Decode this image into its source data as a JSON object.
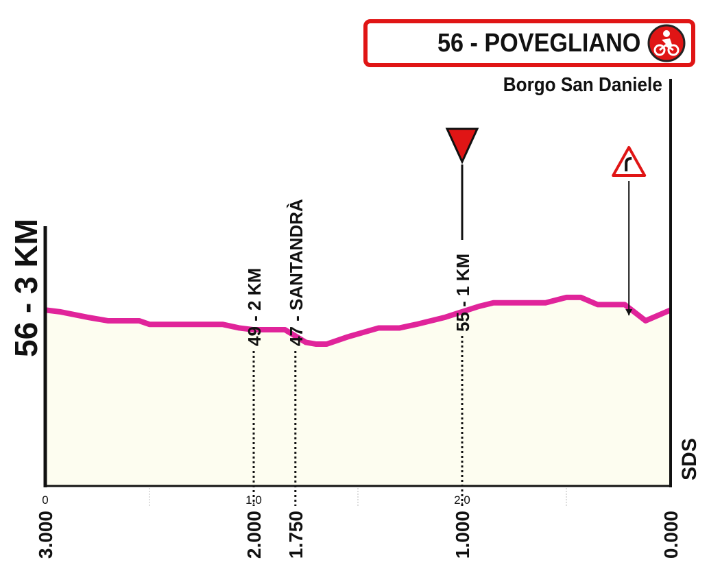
{
  "finish": {
    "title": "56 - POVEGLIANO",
    "subtitle": "Borgo San Daniele",
    "icon": "cyclist-finish-icon",
    "color": "#e01515"
  },
  "side_title": "56 - 3 KM",
  "logo_text": "SDS",
  "colors": {
    "profile_line": "#e0249a",
    "profile_fill": "#fdfdf0",
    "marker_red": "#e01515"
  },
  "chart_data": {
    "type": "area",
    "title": "",
    "xlabel": "",
    "ylabel": "",
    "xlim": [
      0,
      3.0
    ],
    "ylim": [
      0,
      100
    ],
    "grid": true,
    "grid_x": [
      0.5,
      1.5,
      2.5
    ],
    "x_ticks": [
      "0",
      "1.0",
      "2.0"
    ],
    "bottom_labels": [
      {
        "x": 0.0,
        "label": "3.000"
      },
      {
        "x": 1.0,
        "label": "2.000"
      },
      {
        "x": 1.2,
        "label": "1.750"
      },
      {
        "x": 2.0,
        "label": "1.000"
      },
      {
        "x": 3.0,
        "label": "0.000"
      }
    ],
    "series": [
      {
        "x": [
          0,
          0.07,
          0.2,
          0.3,
          0.45,
          0.5,
          0.6,
          0.85,
          0.93,
          1.0,
          1.05,
          1.15,
          1.25,
          1.3,
          1.35,
          1.45,
          1.6,
          1.7,
          1.78,
          1.85,
          1.92,
          2.0,
          2.08,
          2.15,
          2.25,
          2.4,
          2.5,
          2.57,
          2.65,
          2.78,
          2.88,
          3.0
        ],
        "y": [
          98,
          97,
          94,
          92,
          92,
          90,
          90,
          90,
          88,
          87,
          87,
          87,
          80,
          79,
          79,
          83,
          88,
          88,
          90,
          92,
          94,
          97,
          100,
          102,
          102,
          102,
          105,
          105,
          101,
          101,
          92,
          98
        ]
      }
    ],
    "annotations": [
      {
        "x": 1.0,
        "label": "49 - 2 KM",
        "type": "intermediate-km"
      },
      {
        "x": 1.2,
        "label": "47 - SANTANDRÀ",
        "type": "town"
      },
      {
        "x": 2.0,
        "label": "55 - 1 KM",
        "type": "flamme-rouge"
      },
      {
        "x": 2.8,
        "label": "",
        "type": "dangerous-bend"
      }
    ]
  }
}
